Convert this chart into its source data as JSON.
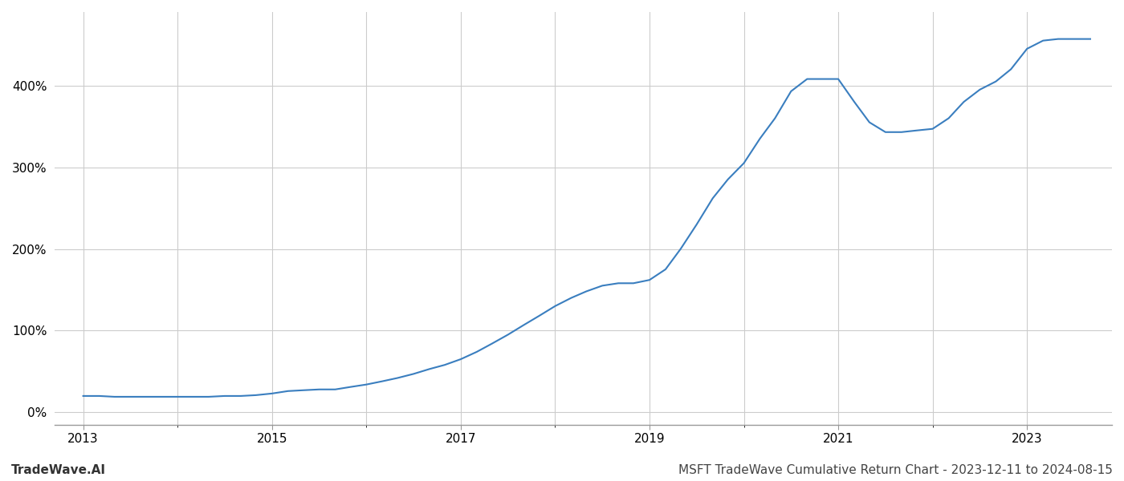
{
  "title": "MSFT TradeWave Cumulative Return Chart - 2023-12-11 to 2024-08-15",
  "watermark": "TradeWave.AI",
  "line_color": "#3a7ebf",
  "background_color": "#ffffff",
  "grid_color": "#cccccc",
  "x_ticks": [
    2013,
    2015,
    2017,
    2019,
    2021,
    2023
  ],
  "data_x": [
    2013.0,
    2013.17,
    2013.33,
    2013.5,
    2013.67,
    2013.83,
    2014.0,
    2014.17,
    2014.33,
    2014.5,
    2014.67,
    2014.83,
    2015.0,
    2015.17,
    2015.33,
    2015.5,
    2015.67,
    2015.83,
    2016.0,
    2016.17,
    2016.33,
    2016.5,
    2016.67,
    2016.83,
    2017.0,
    2017.17,
    2017.33,
    2017.5,
    2017.67,
    2017.83,
    2018.0,
    2018.17,
    2018.33,
    2018.5,
    2018.67,
    2018.83,
    2019.0,
    2019.17,
    2019.33,
    2019.5,
    2019.67,
    2019.83,
    2020.0,
    2020.17,
    2020.33,
    2020.5,
    2020.67,
    2020.83,
    2021.0,
    2021.17,
    2021.33,
    2021.5,
    2021.67,
    2021.83,
    2022.0,
    2022.17,
    2022.33,
    2022.5,
    2022.67,
    2022.83,
    2023.0,
    2023.17,
    2023.33,
    2023.5,
    2023.67
  ],
  "data_y": [
    20,
    20,
    19,
    19,
    19,
    19,
    19,
    19,
    19,
    20,
    20,
    21,
    23,
    26,
    27,
    28,
    28,
    31,
    34,
    38,
    42,
    47,
    53,
    58,
    65,
    74,
    84,
    95,
    107,
    118,
    130,
    140,
    148,
    155,
    158,
    158,
    162,
    175,
    200,
    230,
    262,
    285,
    305,
    335,
    360,
    393,
    408,
    408,
    408,
    380,
    355,
    343,
    343,
    345,
    347,
    360,
    380,
    395,
    405,
    420,
    445,
    455,
    457,
    457,
    457
  ],
  "ylim": [
    -15,
    490
  ],
  "yticks": [
    0,
    100,
    200,
    300,
    400
  ],
  "xlim": [
    2012.7,
    2023.9
  ],
  "line_width": 1.5,
  "title_fontsize": 11,
  "watermark_fontsize": 11,
  "tick_fontsize": 11
}
